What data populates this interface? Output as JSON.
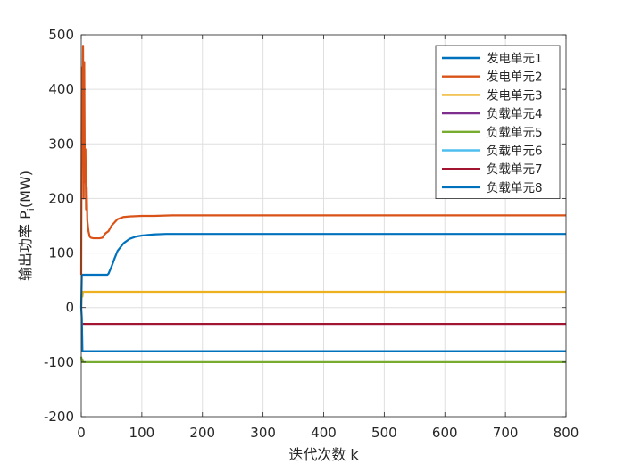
{
  "chart_data": {
    "type": "line",
    "title": "",
    "xlabel": "迭代次数 k",
    "ylabel_main": "输出功率 P",
    "ylabel_sub": "i",
    "ylabel_unit": "(MW)",
    "xlim": [
      0,
      800
    ],
    "ylim": [
      -200,
      500
    ],
    "xticks": [
      0,
      100,
      200,
      300,
      400,
      500,
      600,
      700,
      800
    ],
    "yticks": [
      -200,
      -100,
      0,
      100,
      200,
      300,
      400,
      500
    ],
    "grid": true,
    "legend_position": "top-right",
    "series": [
      {
        "name": "发电单元1",
        "color": "#0072BD",
        "x": [
          0,
          1,
          2,
          3,
          5,
          10,
          20,
          30,
          40,
          43,
          45,
          50,
          55,
          60,
          70,
          80,
          90,
          100,
          120,
          140,
          200,
          400,
          600,
          800
        ],
        "y": [
          0,
          60,
          60,
          60,
          60,
          60,
          60,
          60,
          60,
          60,
          62,
          75,
          90,
          104,
          118,
          126,
          130,
          132,
          134,
          135,
          135,
          135,
          135,
          135
        ]
      },
      {
        "name": "发电单元2",
        "color": "#D95319",
        "x": [
          0,
          1,
          2,
          3,
          4,
          5,
          6,
          7,
          8,
          9,
          10,
          12,
          14,
          16,
          20,
          25,
          30,
          35,
          38,
          40,
          45,
          50,
          60,
          70,
          80,
          100,
          120,
          150,
          200,
          400,
          600,
          800
        ],
        "y": [
          60,
          440,
          300,
          480,
          200,
          450,
          230,
          290,
          180,
          220,
          160,
          140,
          130,
          128,
          127,
          127,
          127,
          128,
          133,
          136,
          140,
          150,
          162,
          166,
          167,
          168,
          168,
          169,
          169,
          169,
          169,
          169
        ]
      },
      {
        "name": "发电单元3",
        "color": "#EDB120",
        "x": [
          0,
          1,
          2,
          3,
          5,
          800
        ],
        "y": [
          0,
          30,
          20,
          29,
          29,
          29
        ]
      },
      {
        "name": "负载单元4",
        "color": "#7E2F8E",
        "x": [
          0,
          1,
          2,
          800
        ],
        "y": [
          -30,
          -30,
          -30,
          -30
        ]
      },
      {
        "name": "负载单元5",
        "color": "#77AC30",
        "x": [
          0,
          1,
          2,
          3,
          800
        ],
        "y": [
          -90,
          -100,
          -95,
          -100,
          -100
        ]
      },
      {
        "name": "负载单元6",
        "color": "#4DBEEE",
        "x": [
          0,
          1,
          2,
          800
        ],
        "y": [
          -80,
          -80,
          -80,
          -80
        ]
      },
      {
        "name": "负载单元7",
        "color": "#A2142F",
        "x": [
          0,
          1,
          2,
          800
        ],
        "y": [
          -30,
          -30,
          -30,
          -30
        ]
      },
      {
        "name": "负载单元8",
        "color": "#0072BD",
        "x": [
          0,
          1,
          2,
          3,
          800
        ],
        "y": [
          0,
          -20,
          -80,
          -80,
          -80
        ]
      }
    ]
  }
}
